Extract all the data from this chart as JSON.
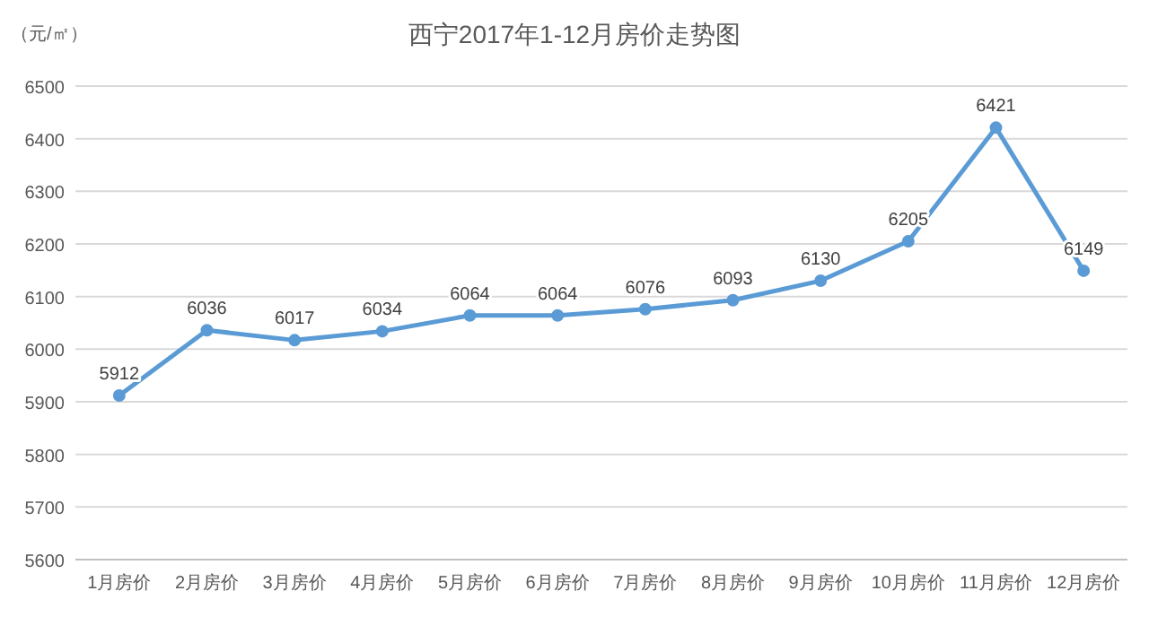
{
  "chart_data": {
    "type": "line",
    "title": "西宁2017年1-12月房价走势图",
    "ylabel": "（元/㎡）",
    "categories": [
      "1月房价",
      "2月房价",
      "3月房价",
      "4月房价",
      "5月房价",
      "6月房价",
      "7月房价",
      "8月房价",
      "9月房价",
      "10月房价",
      "11月房价",
      "12月房价"
    ],
    "series": [
      {
        "color": "#5b9bd5",
        "values": [
          5912,
          6036,
          6017,
          6034,
          6064,
          6064,
          6076,
          6093,
          6130,
          6205,
          6421,
          6149
        ]
      }
    ],
    "ylim": [
      5600,
      6500
    ],
    "yticks": [
      5600,
      5700,
      5800,
      5900,
      6000,
      6100,
      6200,
      6300,
      6400,
      6500
    ],
    "grid": "y",
    "data_labels": true,
    "marker": "circle",
    "line_style": "solid"
  }
}
